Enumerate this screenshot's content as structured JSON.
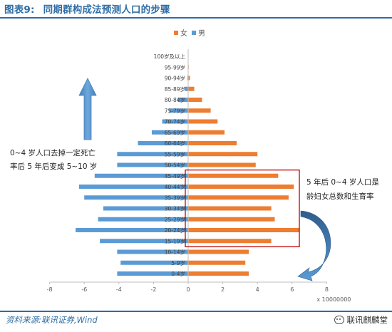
{
  "figure": {
    "number": "图表9:",
    "title": "同期群构成法预测人口的步骤"
  },
  "source": "资料来源:联讯证券,Wind",
  "watermark": "联讯麒麟堂",
  "colors": {
    "female": "#ED7D31",
    "male": "#5B9BD5",
    "accent": "#2E6DA4",
    "box": "#C00000"
  },
  "annotations": {
    "left_line1": "0~4 岁人口去掉一定死亡",
    "left_line2": "率后 5 年后变成 5~10 岁",
    "right_line1": "5 年后 0~4 岁人口是",
    "right_line2": "龄妇女总数和生育率"
  },
  "chart_data": {
    "type": "bar",
    "orientation": "horizontal",
    "subtype": "population-pyramid",
    "categories": [
      "0-4岁",
      "5-9岁",
      "10-14岁",
      "15-19岁",
      "20-24岁",
      "25-29岁",
      "30-34岁",
      "35-39岁",
      "40-44岁",
      "45-49岁",
      "50-54岁",
      "55-59岁",
      "60-64岁",
      "65-69岁",
      "70-74岁",
      "75-79岁",
      "80-84岁",
      "85-89岁",
      "90-94岁",
      "95-99岁",
      "100岁及以上"
    ],
    "series": [
      {
        "name": "女",
        "values": [
          3.5,
          3.3,
          3.5,
          4.8,
          6.4,
          5.0,
          4.8,
          5.8,
          6.1,
          5.2,
          3.9,
          4.0,
          2.8,
          2.1,
          1.7,
          1.3,
          0.8,
          0.35,
          0.1,
          0.03,
          0.01
        ]
      },
      {
        "name": "男",
        "values": [
          -4.1,
          -3.9,
          -4.1,
          -5.1,
          -6.5,
          -5.2,
          -4.9,
          -6.0,
          -6.3,
          -5.4,
          -4.1,
          -4.1,
          -2.9,
          -2.1,
          -1.5,
          -1.1,
          -0.6,
          -0.2,
          -0.04,
          -0.01,
          -0.003
        ]
      }
    ],
    "legend_position": "top",
    "xlim": [
      -8,
      8
    ],
    "xticks": [
      "-8",
      "-6",
      "-4",
      "-2",
      "0",
      "2",
      "4",
      "6",
      "8"
    ],
    "x_unit_label": "x 10000000",
    "highlight_range": [
      "15-19岁",
      "45-49岁"
    ],
    "grid": false
  }
}
